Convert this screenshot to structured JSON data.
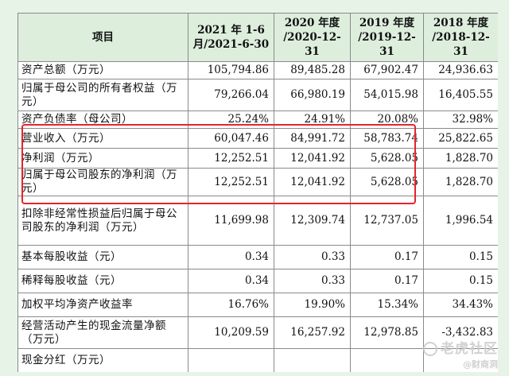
{
  "table": {
    "headers": [
      "项目",
      "2021 年 1-6\n月/2021-6-30",
      "2020 年度\n/2020-12-31",
      "2019 年度\n/2019-12-31",
      "2018 年度\n/2018-12-31"
    ],
    "rows": [
      {
        "label": "资产总额（万元）",
        "values": [
          "105,794.86",
          "89,485.28",
          "67,902.47",
          "24,936.63"
        ]
      },
      {
        "label": "归属于母公司的所有者权益（万元）",
        "values": [
          "79,266.04",
          "66,980.19",
          "54,015.98",
          "16,405.55"
        ]
      },
      {
        "label": "资产负债率（母公司）",
        "values": [
          "25.24%",
          "24.91%",
          "20.08%",
          "32.98%"
        ]
      },
      {
        "label": "营业收入（万元）",
        "values": [
          "60,047.46",
          "84,991.72",
          "58,783.74",
          "25,822.65"
        ]
      },
      {
        "label": "净利润（万元）",
        "values": [
          "12,252.51",
          "12,041.92",
          "5,628.05",
          "1,828.70"
        ]
      },
      {
        "label": "归属于母公司股东的净利润（万元）",
        "values": [
          "12,252.51",
          "12,041.92",
          "5,628.05",
          "1,828.70"
        ]
      },
      {
        "label": "扣除非经常性损益后归属于母公司股东的净利润（万元）",
        "values": [
          "11,699.98",
          "12,309.74",
          "12,737.05",
          "1,996.54"
        ]
      },
      {
        "label": "基本每股收益（元）",
        "values": [
          "0.34",
          "0.33",
          "0.17",
          "0.15"
        ]
      },
      {
        "label": "稀释每股收益（元）",
        "values": [
          "0.34",
          "0.33",
          "0.17",
          "0.15"
        ]
      },
      {
        "label": "加权平均净资产收益率",
        "values": [
          "16.76%",
          "19.90%",
          "15.34%",
          "34.43%"
        ]
      },
      {
        "label": "经营活动产生的现金流量净额（万元）",
        "values": [
          "10,209.59",
          "16,257.92",
          "12,978.85",
          "-3,432.83"
        ]
      },
      {
        "label": "现金分红（万元）",
        "values": [
          "",
          "",
          "",
          ""
        ]
      }
    ]
  },
  "watermark": {
    "brand": "老虎社区",
    "handle": "@财商洞"
  },
  "colors": {
    "header_bg": "#ddeedd",
    "highlight_border": "#e2262b",
    "page_bg": "#e8f3e8"
  }
}
